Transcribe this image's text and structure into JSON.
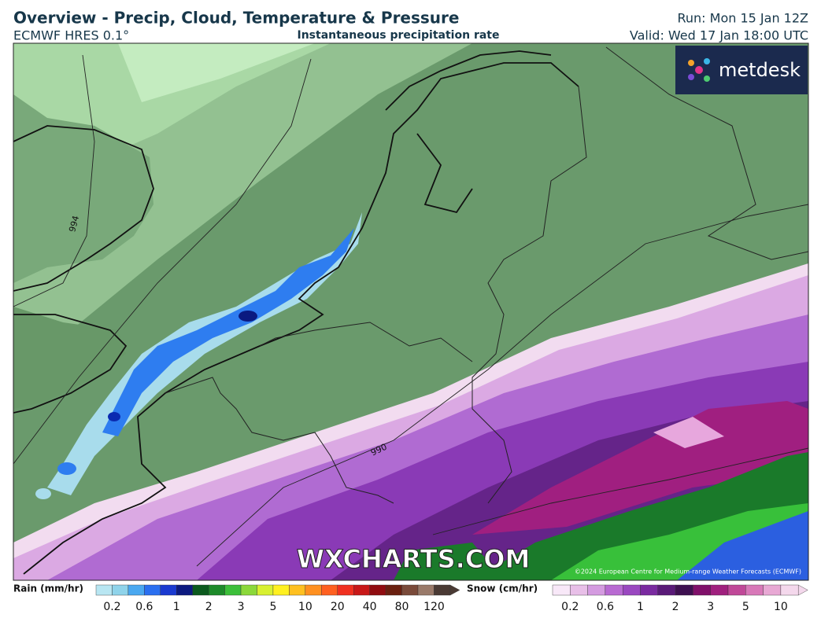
{
  "header": {
    "title": "Overview - Precip, Cloud, Temperature & Pressure",
    "model": "ECMWF HRES 0.1°",
    "subtitle": "Instantaneous precipitation rate",
    "run": "Run: Mon 15 Jan 12Z",
    "valid": "Valid: Wed 17 Jan 18:00 UTC"
  },
  "map": {
    "logo": "metdesk",
    "isobar_labels": [
      "994",
      "990"
    ],
    "watermark": "WXCHARTS.COM",
    "credit": "©2024 European Centre for Medium-range Weather Forecasts (ECMWF)"
  },
  "legend": {
    "rain": {
      "label": "Rain (mm/hr)",
      "ticks": [
        "0.2",
        "0.6",
        "1",
        "2",
        "3",
        "5",
        "10",
        "20",
        "40",
        "80",
        "120"
      ]
    },
    "snow": {
      "label": "Snow (cm/hr)",
      "ticks": [
        "0.2",
        "0.6",
        "1",
        "2",
        "3",
        "5",
        "10"
      ]
    }
  }
}
